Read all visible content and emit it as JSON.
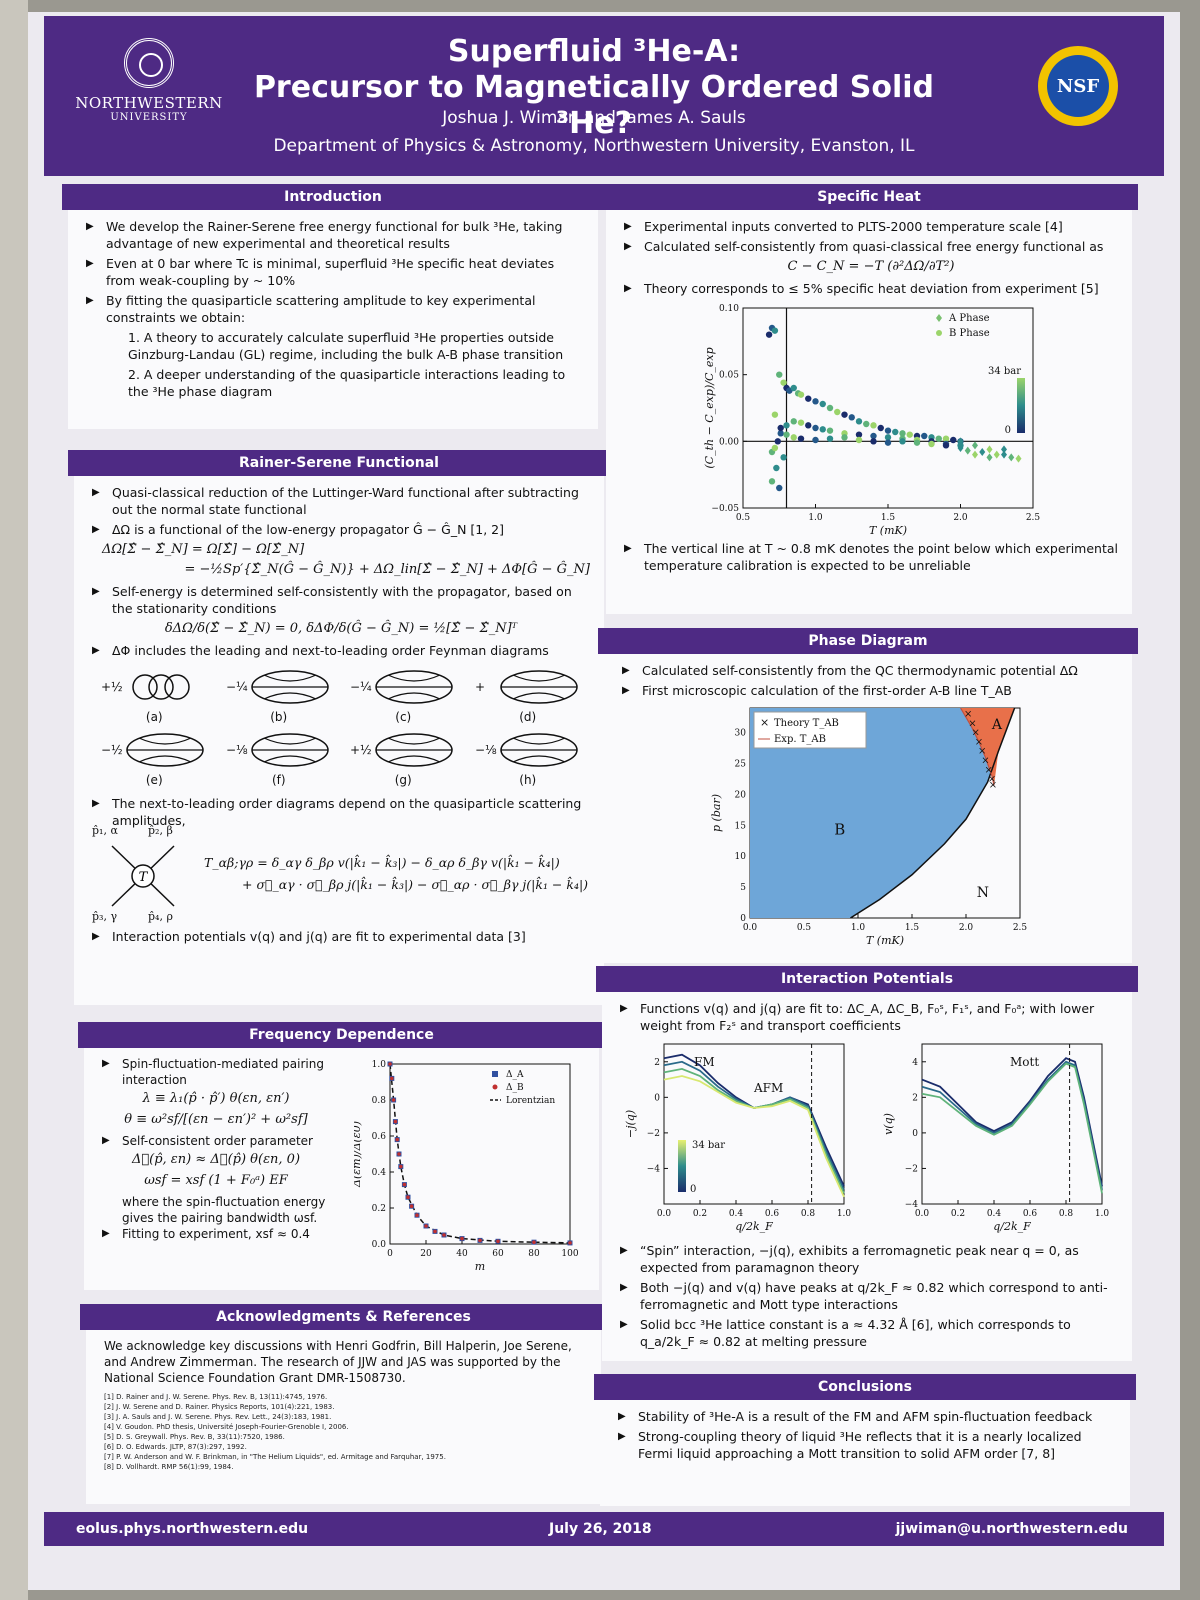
{
  "header": {
    "university": "NORTHWESTERN",
    "university_sub": "UNIVERSITY",
    "title_line1": "Superfluid ³He-A:",
    "title_line2": "Precursor to Magnetically Ordered Solid ³He?",
    "authors": "Joshua J. Wiman and James A. Sauls",
    "department": "Department of Physics & Astronomy, Northwestern University, Evanston, IL",
    "nsf": "NSF"
  },
  "intro": {
    "title": "Introduction",
    "b1": "We develop the Rainer-Serene free energy functional for bulk ³He, taking advantage of new experimental and theoretical results",
    "b2": "Even at 0 bar where Tc is minimal, superfluid ³He specific heat deviates from weak-coupling by ~ 10%",
    "b3": "By fitting the quasiparticle scattering amplitude to key experimental constraints we obtain:",
    "n1": "1. A theory to accurately calculate superfluid ³He properties outside Ginzburg-Landau (GL) regime, including the bulk A-B phase transition",
    "n2": "2. A deeper understanding of the quasiparticle interactions leading to the ³He phase diagram"
  },
  "rs": {
    "title": "Rainer-Serene Functional",
    "b1": "Quasi-classical reduction of the Luttinger-Ward functional after subtracting out the normal state functional",
    "b2": "ΔΩ is a functional of the low-energy propagator Ĝ − Ĝ_N [1, 2]",
    "eq1": "ΔΩ[Σ̂ − Σ̂_N] = Ω[Σ̂] − Ω[Σ̂_N]",
    "eq2": "= −½Sp′{Σ̂_N(Ĝ − Ĝ_N)} + ΔΩ_lin[Σ̂ − Σ̂_N] + ΔΦ[Ĝ − Ĝ_N]",
    "b3": "Self-energy is determined self-consistently with the propagator, based on the stationarity conditions",
    "eq3": "δΔΩ/δ(Σ̂ − Σ̂_N) = 0,     δΔΦ/δ(Ĝ − Ĝ_N) = ½[Σ̂ − Σ̂_N]ᵀ",
    "b4": "ΔΦ includes the leading and next-to-leading order Feynman diagrams",
    "diagrams": [
      {
        "coef": "+½",
        "label": "(a)"
      },
      {
        "coef": "−¼",
        "label": "(b)"
      },
      {
        "coef": "−¼",
        "label": "(c)"
      },
      {
        "coef": "+",
        "label": "(d)"
      },
      {
        "coef": "−½",
        "label": "(e)"
      },
      {
        "coef": "−⅛",
        "label": "(f)"
      },
      {
        "coef": "+½",
        "label": "(g)"
      },
      {
        "coef": "−⅛",
        "label": "(h)"
      }
    ],
    "b5": "The next-to-leading order diagrams depend on the quasiparticle scattering amplitudes,",
    "v_p1": "p̂₁, α",
    "v_p2": "p̂₂, β",
    "v_p3": "p̂₃, γ",
    "v_p4": "p̂₄, ρ",
    "v_T": "T",
    "eq4": "T_αβ;γρ = δ_αγ δ_βρ v(|k̂₁ − k̂₃|) − δ_αρ δ_βγ v(|k̂₁ − k̂₄|)",
    "eq5": "+ σ⃗_αγ · σ⃗_βρ j(|k̂₁ − k̂₃|) − σ⃗_αρ · σ⃗_βγ j(|k̂₁ − k̂₄|)",
    "b6": "Interaction potentials v(q) and j(q) are fit to experimental data [3]"
  },
  "freq": {
    "title": "Frequency Dependence",
    "b1": "Spin-fluctuation-mediated pairing interaction",
    "eq1": "λ ≡ λ₁(p̂ · p̂′) θ(εn, εn′)",
    "eq2": "θ ≡ ω²sf/[(εn − εn′)² + ω²sf]",
    "b2": "Self-consistent order parameter",
    "eq3": "Δ⃗(p̂, εn) ≈ Δ⃗(p̂) θ(εn, 0)",
    "eq4": "ωsf = xsf (1 + F₀ᵃ) EF",
    "text1": "where the spin-fluctuation energy gives the pairing bandwidth ωsf.",
    "b3": "Fitting to experiment, xsf ≈ 0.4"
  },
  "ack": {
    "title": "Acknowledgments & References",
    "text": "We acknowledge key discussions with Henri Godfrin, Bill Halperin, Joe Serene, and Andrew Zimmerman. The research of JJW and JAS was supported by the National Science Foundation Grant DMR-1508730.",
    "refs": [
      "[1] D. Rainer and J. W. Serene. Phys. Rev. B, 13(11):4745, 1976.",
      "[2] J. W. Serene and D. Rainer. Physics Reports, 101(4):221, 1983.",
      "[3] J. A. Sauls and J. W. Serene. Phys. Rev. Lett., 24(3):183, 1981.",
      "[4] V. Goudon. PhD thesis, Université Joseph-Fourier-Grenoble I, 2006.",
      "[5] D. S. Greywall. Phys. Rev. B, 33(11):7520, 1986.",
      "[6] D. O. Edwards. JLTP, 87(3):297, 1992.",
      "[7] P. W. Anderson and W. F. Brinkman, in \"The Helium Liquids\", ed. Armitage and Farquhar, 1975.",
      "[8] D. Vollhardt. RMP 56(1):99, 1984."
    ]
  },
  "sh": {
    "title": "Specific Heat",
    "b1": "Experimental inputs converted to PLTS-2000 temperature scale [4]",
    "b2": "Calculated self-consistently from quasi-classical free energy functional as",
    "eq": "C − C_N = −T (∂²ΔΩ/∂T²)",
    "b3": "Theory corresponds to ≤ 5% specific heat deviation from experiment [5]",
    "b4": "The vertical line at T ~ 0.8 mK denotes the point below which experimental temperature calibration is expected to be unreliable"
  },
  "pd": {
    "title": "Phase Diagram",
    "b1": "Calculated self-consistently from the QC thermodynamic potential ΔΩ",
    "b2": "First microscopic calculation of the first-order A-B line T_AB"
  },
  "ip": {
    "title": "Interaction Potentials",
    "b1": "Functions v(q) and j(q) are fit to: ΔC_A, ΔC_B, F₀ˢ, F₁ˢ, and F₀ᵃ; with lower weight from F₂ˢ and transport coefficients",
    "b2": "“Spin” interaction, −j(q), exhibits a ferromagnetic peak near q = 0, as expected from paramagnon theory",
    "b3": "Both −j(q) and v(q) have peaks at q/2k_F ≈ 0.82 which correspond to anti-ferromagnetic and Mott type interactions",
    "b4": "Solid bcc ³He lattice constant is a ≈ 4.32 Å [6], which corresponds to q_a/2k_F ≈ 0.82 at melting pressure"
  },
  "concl": {
    "title": "Conclusions",
    "b1": "Stability of ³He-A is a result of the FM and AFM spin-fluctuation feedback",
    "b2": "Strong-coupling theory of liquid ³He reflects that it is a nearly localized Fermi liquid approaching a Mott transition to solid AFM order [7, 8]"
  },
  "footer": {
    "left": "eolus.phys.northwestern.edu",
    "center": "July 26, 2018",
    "right": "jjwiman@u.northwestern.edu"
  },
  "chart_data": [
    {
      "id": "specific-heat",
      "type": "scatter",
      "xlabel": "T (mK)",
      "ylabel": "(C_th − C_exp)/C_exp",
      "xlim": [
        0.5,
        2.5
      ],
      "ylim": [
        -0.05,
        0.1
      ],
      "xticks": [
        "0.5",
        "1.0",
        "1.5",
        "2.0",
        "2.5"
      ],
      "yticks": [
        "−0.05",
        "0.00",
        "0.05",
        "0.10"
      ],
      "vline_x": 0.8,
      "legend": "top-right",
      "colorbar_label": "34 bar",
      "colorbar_min": "0",
      "colors": {
        "high": "#1a2c6b",
        "mid": "#2e8c8c",
        "low": "#9bd46a"
      },
      "series": [
        {
          "name": "A Phase",
          "marker": "diamond",
          "x": [
            2.0,
            2.05,
            2.1,
            2.15,
            2.2,
            2.25,
            2.3,
            2.35,
            2.4,
            2.0,
            2.1,
            2.2,
            2.3
          ],
          "y": [
            -0.005,
            -0.007,
            -0.01,
            -0.008,
            -0.012,
            -0.01,
            -0.01,
            -0.012,
            -0.013,
            0.0,
            -0.003,
            -0.006,
            -0.006
          ]
        },
        {
          "name": "B Phase",
          "marker": "circle",
          "x": [
            0.68,
            0.7,
            0.72,
            0.75,
            0.78,
            0.8,
            0.82,
            0.85,
            0.88,
            0.9,
            0.95,
            1.0,
            1.05,
            1.1,
            1.15,
            1.2,
            1.25,
            1.3,
            1.35,
            1.4,
            1.45,
            1.5,
            1.55,
            1.6,
            1.65,
            1.7,
            1.75,
            1.8,
            1.85,
            1.9,
            1.95,
            2.0,
            0.8,
            0.85,
            0.9,
            0.95,
            1.0,
            1.05,
            1.1,
            1.2,
            1.3,
            1.4,
            1.5,
            1.6,
            1.7,
            1.8,
            1.9,
            2.0,
            0.7,
            0.72,
            0.74,
            0.76,
            0.78,
            0.8,
            0.85,
            0.9,
            1.0,
            1.1,
            1.2,
            1.3,
            1.4,
            1.5,
            1.6,
            1.7,
            1.8,
            1.9,
            0.75,
            0.73,
            0.7,
            0.72,
            0.76
          ],
          "y": [
            0.08,
            0.085,
            0.083,
            0.05,
            0.044,
            0.04,
            0.038,
            0.04,
            0.036,
            0.035,
            0.032,
            0.03,
            0.028,
            0.025,
            0.022,
            0.02,
            0.018,
            0.015,
            0.013,
            0.012,
            0.01,
            0.008,
            0.007,
            0.006,
            0.005,
            0.004,
            0.004,
            0.003,
            0.002,
            0.002,
            0.001,
            0.0,
            0.012,
            0.015,
            0.014,
            0.012,
            0.01,
            0.009,
            0.008,
            0.006,
            0.005,
            0.004,
            0.003,
            0.002,
            0.001,
            0.0,
            -0.002,
            -0.003,
            -0.008,
            -0.005,
            0.0,
            0.006,
            -0.012,
            0.005,
            0.003,
            0.002,
            0.001,
            0.002,
            0.003,
            0.001,
            0.0,
            -0.001,
            0.0,
            -0.001,
            -0.002,
            -0.003,
            -0.035,
            -0.02,
            -0.03,
            0.02,
            0.01
          ]
        }
      ]
    },
    {
      "id": "phase-diagram",
      "type": "area",
      "xlabel": "T (mK)",
      "ylabel": "p (bar)",
      "xlim": [
        0.0,
        2.5
      ],
      "ylim": [
        0,
        34
      ],
      "xticks": [
        "0.0",
        "0.5",
        "1.0",
        "1.5",
        "2.0",
        "2.5"
      ],
      "yticks": [
        "0",
        "5",
        "10",
        "15",
        "20",
        "25",
        "30"
      ],
      "regions": [
        "B",
        "A",
        "N"
      ],
      "colors": {
        "B": "#6ea6d8",
        "A": "#e8704a",
        "N": "#ffffff",
        "theory": "#222222"
      },
      "legend": "top-left",
      "series": [
        {
          "name": "Tc",
          "x": [
            0.93,
            1.2,
            1.5,
            1.8,
            2.0,
            2.2,
            2.3,
            2.45
          ],
          "y": [
            0,
            3,
            7,
            12,
            16,
            22,
            27,
            34
          ]
        },
        {
          "name": "Theory T_AB",
          "marker": "x",
          "x": [
            2.02,
            2.06,
            2.09,
            2.12,
            2.15,
            2.18,
            2.21,
            2.24,
            2.25
          ],
          "y": [
            33,
            31.5,
            30,
            28.5,
            27,
            25.5,
            24,
            22.5,
            21.5
          ]
        },
        {
          "name": "Exp. T_AB",
          "x": [
            1.95,
            2.05,
            2.12,
            2.18,
            2.24,
            2.26
          ],
          "y": [
            34,
            31,
            28.5,
            26,
            23,
            21.5
          ]
        }
      ]
    },
    {
      "id": "j-of-q",
      "type": "line",
      "xlabel": "q/2k_F",
      "ylabel": "−j(q)",
      "xlim": [
        0.0,
        1.0
      ],
      "ylim": [
        -6,
        3
      ],
      "xticks": [
        "0.0",
        "0.2",
        "0.4",
        "0.6",
        "0.8",
        "1.0"
      ],
      "yticks": [
        "−4",
        "−2",
        "0",
        "2"
      ],
      "annotations": [
        "FM",
        "AFM"
      ],
      "vline_x": 0.82,
      "colorbar_label": "34 bar",
      "colorbar_min": "0",
      "series": [
        {
          "name": "",
          "x": [
            0.0,
            0.1,
            0.2,
            0.3,
            0.4,
            0.5,
            0.6,
            0.7,
            0.8,
            0.9,
            1.0
          ],
          "y": [
            2.2,
            2.4,
            1.8,
            0.8,
            0.0,
            -0.6,
            -0.4,
            0.0,
            -0.4,
            -2.8,
            -5.0
          ]
        },
        {
          "name": "",
          "x": [
            0.0,
            0.1,
            0.2,
            0.3,
            0.4,
            0.5,
            0.6,
            0.7,
            0.8,
            0.9,
            1.0
          ],
          "y": [
            1.8,
            2.0,
            1.5,
            0.6,
            -0.1,
            -0.6,
            -0.4,
            0.0,
            -0.5,
            -3.0,
            -5.2
          ]
        },
        {
          "name": "",
          "x": [
            0.0,
            0.1,
            0.2,
            0.3,
            0.4,
            0.5,
            0.6,
            0.7,
            0.8,
            0.9,
            1.0
          ],
          "y": [
            1.4,
            1.6,
            1.2,
            0.4,
            -0.2,
            -0.6,
            -0.4,
            -0.1,
            -0.6,
            -3.2,
            -5.4
          ]
        },
        {
          "name": "",
          "x": [
            0.0,
            0.1,
            0.2,
            0.3,
            0.4,
            0.5,
            0.6,
            0.7,
            0.8,
            0.9,
            1.0
          ],
          "y": [
            1.0,
            1.2,
            0.9,
            0.3,
            -0.3,
            -0.6,
            -0.5,
            -0.2,
            -0.7,
            -3.4,
            -5.6
          ]
        }
      ]
    },
    {
      "id": "v-of-q",
      "type": "line",
      "xlabel": "q/2k_F",
      "ylabel": "v(q)",
      "xlim": [
        0.0,
        1.0
      ],
      "ylim": [
        -4,
        5
      ],
      "xticks": [
        "0.0",
        "0.2",
        "0.4",
        "0.6",
        "0.8",
        "1.0"
      ],
      "yticks": [
        "−4",
        "−2",
        "0",
        "2",
        "4"
      ],
      "annotations": [
        "Mott"
      ],
      "vline_x": 0.82,
      "series": [
        {
          "name": "",
          "x": [
            0.0,
            0.1,
            0.2,
            0.3,
            0.4,
            0.5,
            0.6,
            0.7,
            0.8,
            0.85,
            0.9,
            1.0
          ],
          "y": [
            3.0,
            2.6,
            1.6,
            0.6,
            0.1,
            0.6,
            1.8,
            3.2,
            4.2,
            4.0,
            2.0,
            -3.0
          ]
        },
        {
          "name": "",
          "x": [
            0.0,
            0.1,
            0.2,
            0.3,
            0.4,
            0.5,
            0.6,
            0.7,
            0.8,
            0.85,
            0.9,
            1.0
          ],
          "y": [
            2.6,
            2.3,
            1.4,
            0.5,
            0.0,
            0.5,
            1.7,
            3.0,
            4.0,
            3.8,
            1.8,
            -3.2
          ]
        },
        {
          "name": "",
          "x": [
            0.0,
            0.1,
            0.2,
            0.3,
            0.4,
            0.5,
            0.6,
            0.7,
            0.8,
            0.85,
            0.9,
            1.0
          ],
          "y": [
            2.2,
            2.0,
            1.2,
            0.4,
            -0.1,
            0.4,
            1.6,
            2.9,
            3.9,
            3.7,
            1.6,
            -3.4
          ]
        }
      ]
    },
    {
      "id": "gap-freq",
      "type": "line",
      "xlabel": "m",
      "ylabel": "Δ(εm)/Δ(ε0)",
      "xlim": [
        0,
        100
      ],
      "ylim": [
        0.0,
        1.0
      ],
      "xticks": [
        "0",
        "20",
        "40",
        "60",
        "80",
        "100"
      ],
      "yticks": [
        "0.0",
        "0.2",
        "0.4",
        "0.6",
        "0.8",
        "1.0"
      ],
      "legend": "top-right",
      "series": [
        {
          "name": "Δ_A",
          "marker": "square",
          "color": "#3050a0",
          "x": [
            0,
            1,
            2,
            3,
            4,
            5,
            6,
            8,
            10,
            12,
            15,
            20,
            25,
            30,
            40,
            50,
            60,
            80,
            100
          ],
          "y": [
            1.0,
            0.92,
            0.8,
            0.68,
            0.58,
            0.5,
            0.43,
            0.33,
            0.26,
            0.21,
            0.16,
            0.1,
            0.07,
            0.05,
            0.03,
            0.02,
            0.015,
            0.01,
            0.006
          ]
        },
        {
          "name": "Δ_B",
          "marker": "circle",
          "color": "#c03030",
          "x": [
            0,
            1,
            2,
            3,
            4,
            5,
            6,
            8,
            10,
            12,
            15,
            20,
            25,
            30,
            40,
            50,
            60,
            80,
            100
          ],
          "y": [
            1.0,
            0.92,
            0.8,
            0.68,
            0.58,
            0.5,
            0.43,
            0.33,
            0.26,
            0.21,
            0.16,
            0.1,
            0.07,
            0.05,
            0.03,
            0.02,
            0.015,
            0.01,
            0.006
          ]
        },
        {
          "name": "Lorentzian",
          "marker": "dash",
          "color": "#111111",
          "x": [
            0,
            2,
            4,
            6,
            8,
            10,
            15,
            20,
            30,
            40,
            60,
            80,
            100
          ],
          "y": [
            1.0,
            0.8,
            0.58,
            0.43,
            0.33,
            0.26,
            0.16,
            0.1,
            0.05,
            0.03,
            0.015,
            0.01,
            0.006
          ]
        }
      ]
    }
  ]
}
